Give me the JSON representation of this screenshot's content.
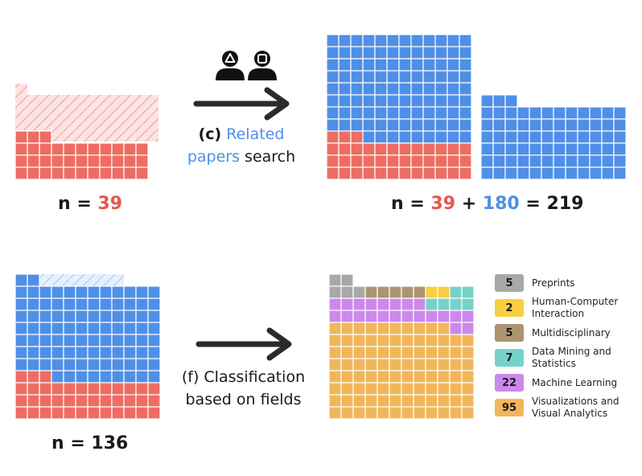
{
  "panel_a": {
    "count_label": "n = ",
    "count_value": "39"
  },
  "panel_b": {
    "prefix": "n = ",
    "original": "39",
    "plus": " + ",
    "added": "180",
    "equals": " = ",
    "total": "219"
  },
  "panel_c": {
    "count_label": "n = ",
    "count_value": "136"
  },
  "step_c": {
    "marker": "(c)",
    "word1": "Related",
    "word2": "papers",
    "word3": "search"
  },
  "step_f": {
    "line1": "(f) Classification",
    "line2": "based on fields"
  },
  "colors": {
    "original_papers": "#ee6c63",
    "related_papers": "#4f8fe8",
    "removed_hatch": "#ee6c63",
    "preprints": "#a8a8a8",
    "hci": "#f7cf41",
    "multidisciplinary": "#ad9471",
    "data_mining": "#75d2c9",
    "machine_learning": "#cd88ec",
    "visualization": "#f2b65a"
  },
  "legend": [
    {
      "count": "5",
      "label": "Preprints",
      "color": "#a8a8a8"
    },
    {
      "count": "2",
      "label": "Human-Computer Interaction",
      "color": "#f7cf41"
    },
    {
      "count": "5",
      "label": "Multidisciplinary",
      "color": "#ad9471"
    },
    {
      "count": "7",
      "label": "Data Mining and Statistics",
      "color": "#75d2c9"
    },
    {
      "count": "22",
      "label": "Machine Learning",
      "color": "#cd88ec"
    },
    {
      "count": "95",
      "label": "Visualizations and Visual Analytics",
      "color": "#f2b65a"
    }
  ],
  "icons": [
    "person-triangle-icon",
    "person-square-icon"
  ]
}
